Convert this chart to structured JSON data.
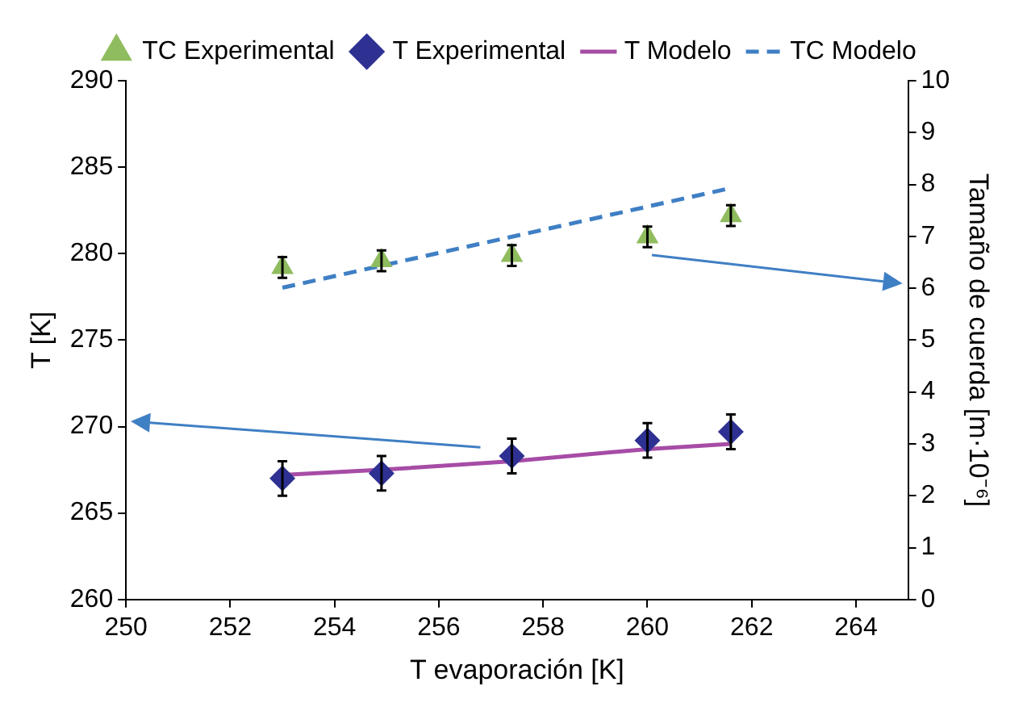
{
  "chart_data": {
    "type": "scatter",
    "xlabel": "T evaporación [K]",
    "ylabel": "T [K]",
    "y2label": "Tamaño de cuerda [m·10⁻⁶]",
    "xlim": [
      250,
      265
    ],
    "xticks": [
      250,
      252,
      254,
      256,
      258,
      260,
      262,
      264
    ],
    "ylim": [
      260,
      290
    ],
    "yticks": [
      260,
      265,
      270,
      275,
      280,
      285,
      290
    ],
    "y2lim": [
      0,
      10
    ],
    "y2ticks": [
      0,
      1,
      2,
      3,
      4,
      5,
      6,
      7,
      8,
      9,
      10
    ],
    "grid": false,
    "legend": "top",
    "series": [
      {
        "name": "TC Experimental",
        "axis": "y2",
        "marker": "triangle",
        "color": "#8fbc5e",
        "x": [
          253.0,
          254.9,
          257.4,
          260.0,
          261.6
        ],
        "values": [
          6.4,
          6.53,
          6.63,
          6.99,
          7.4
        ],
        "errors": [
          0.2,
          0.2,
          0.2,
          0.2,
          0.2
        ]
      },
      {
        "name": "T Experimental",
        "marker": "diamond",
        "color": "#2e3192",
        "x": [
          253.0,
          254.9,
          257.4,
          260.0,
          261.6
        ],
        "values": [
          267.0,
          267.3,
          268.3,
          269.2,
          269.7
        ],
        "errors": [
          1,
          1,
          1,
          1,
          1
        ]
      },
      {
        "name": "T Modelo",
        "type": "line",
        "marker": "none",
        "line_style": "solid",
        "color": "#a64ca6",
        "x": [
          253.0,
          254.9,
          257.4,
          260.0,
          261.6
        ],
        "values": [
          267.2,
          267.5,
          268.0,
          268.7,
          269.0
        ]
      },
      {
        "name": "TC Modelo",
        "type": "line",
        "axis": "y2",
        "marker": "none",
        "line_style": "dashed",
        "color": "#3f7fc4",
        "x": [
          253.0,
          261.6
        ],
        "values": [
          6.01,
          7.93
        ]
      }
    ]
  }
}
